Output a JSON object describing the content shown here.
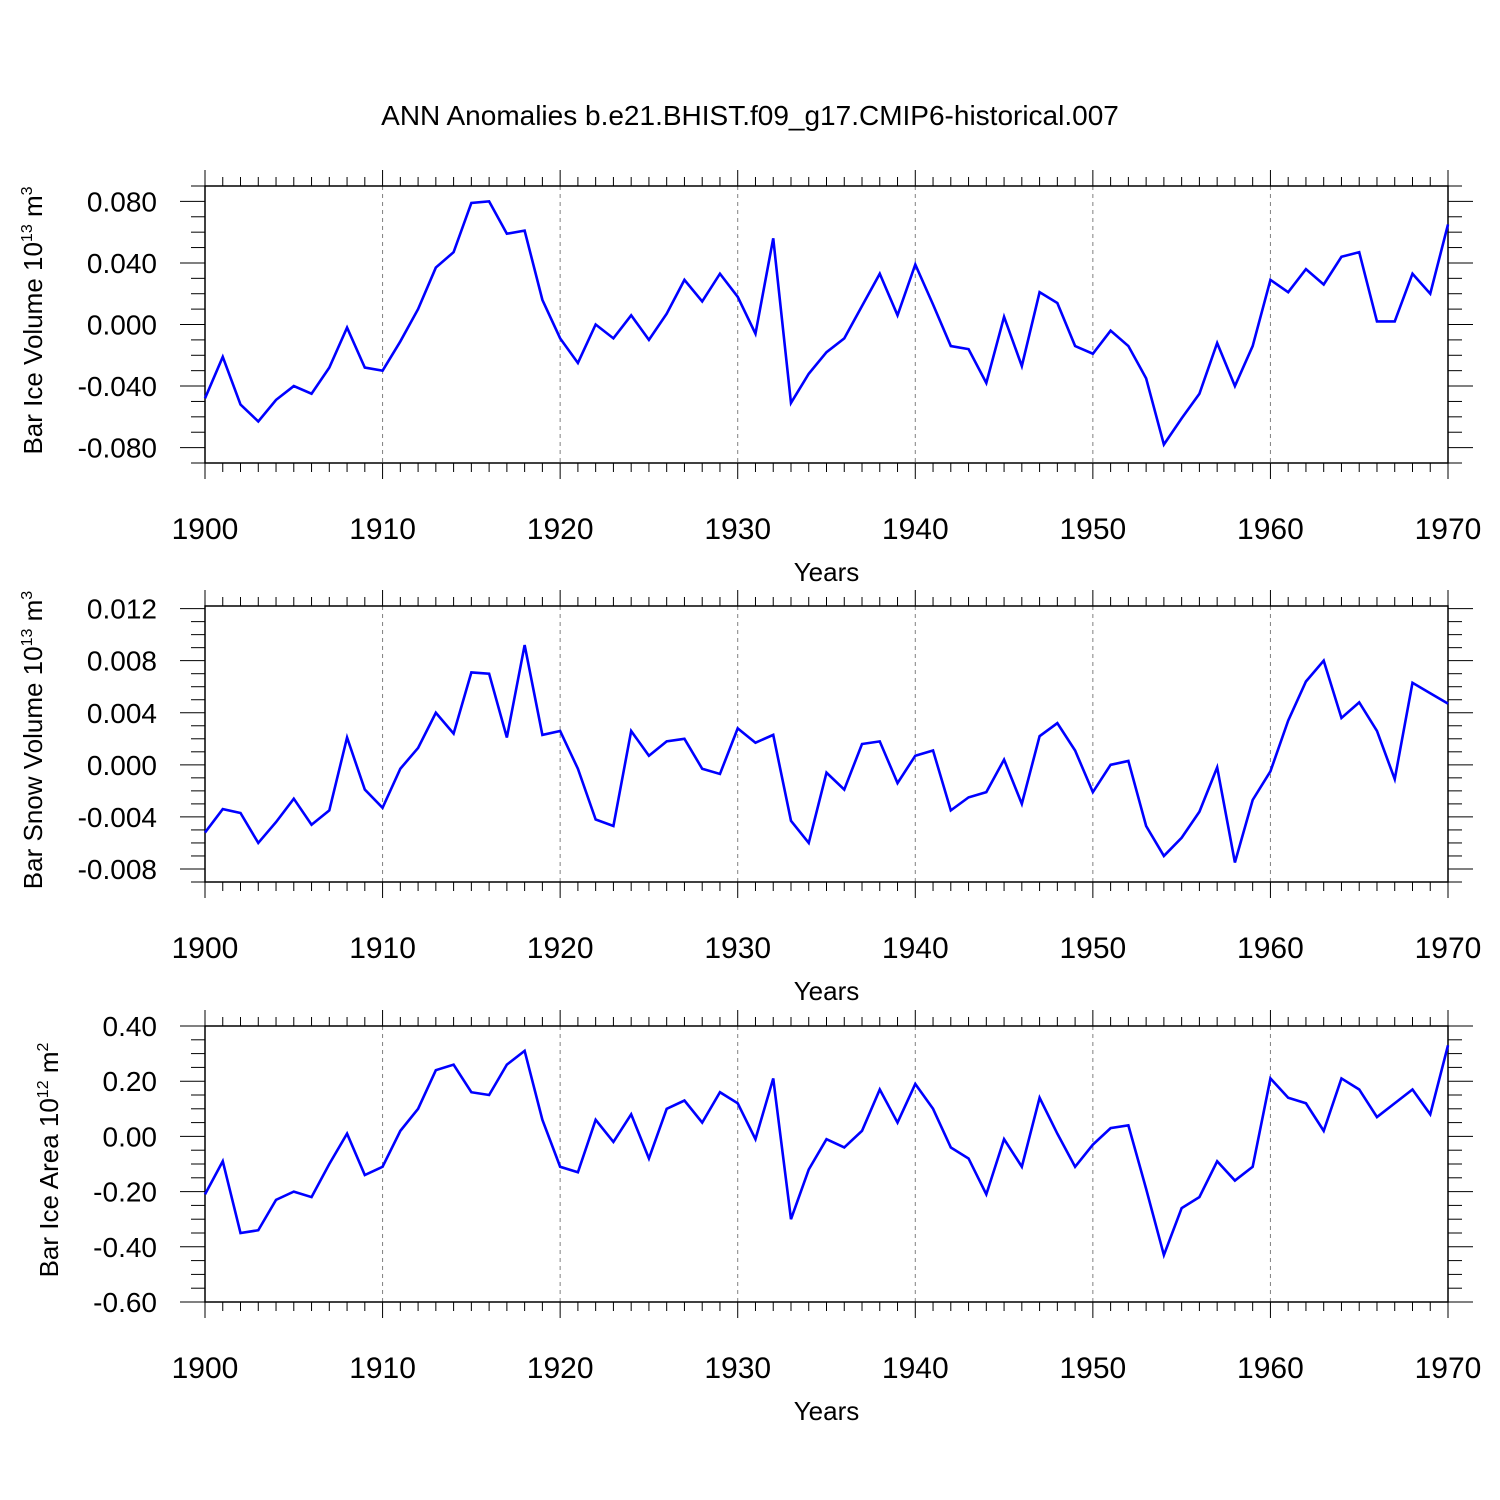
{
  "title": "ANN Anomalies b.e21.BHIST.f09_g17.CMIP6-historical.007",
  "colors": {
    "line": "#0000ff",
    "axis": "#000000",
    "grid": "#808080"
  },
  "chart_data": [
    {
      "type": "line",
      "ylabel_main": "Bar Ice Volume 10",
      "ylabel_exp1": "13",
      "ylabel_unit": " m",
      "ylabel_exp2": "3",
      "xlabel": "Years",
      "xlim": [
        1900,
        1970
      ],
      "ylim": [
        -0.09,
        0.09
      ],
      "xticks": [
        1900,
        1910,
        1920,
        1930,
        1940,
        1950,
        1960,
        1970
      ],
      "yticks": [
        -0.08,
        -0.04,
        0.0,
        0.04,
        0.08
      ],
      "ytick_labels": [
        "-0.080",
        "-0.040",
        "0.000",
        "0.040",
        "0.080"
      ],
      "yminor_step": 0.01,
      "vgrid": [
        1910,
        1920,
        1930,
        1940,
        1950,
        1960
      ],
      "series": [
        {
          "name": "Bar Ice Volume",
          "values": [
            -0.048,
            -0.021,
            -0.052,
            -0.063,
            -0.049,
            -0.04,
            -0.045,
            -0.028,
            -0.002,
            -0.028,
            -0.03,
            -0.011,
            0.01,
            0.037,
            0.047,
            0.079,
            0.08,
            0.059,
            0.061,
            0.016,
            -0.009,
            -0.025,
            0.0,
            -0.009,
            0.006,
            -0.01,
            0.007,
            0.029,
            0.015,
            0.033,
            0.018,
            -0.006,
            0.056,
            -0.051,
            -0.032,
            -0.018,
            -0.009,
            0.012,
            0.033,
            0.006,
            0.039,
            0.013,
            -0.014,
            -0.016,
            -0.038,
            0.005,
            -0.027,
            0.021,
            0.014,
            -0.014,
            -0.019,
            -0.004,
            -0.014,
            -0.035,
            -0.078,
            -0.061,
            -0.045,
            -0.012,
            -0.04,
            -0.014,
            0.029,
            0.021,
            0.036,
            0.026,
            0.044,
            0.047,
            0.002,
            0.002,
            0.033,
            0.02,
            0.065
          ]
        }
      ]
    },
    {
      "type": "line",
      "ylabel_main": "Bar Snow Volume 10",
      "ylabel_exp1": "13",
      "ylabel_unit": " m",
      "ylabel_exp2": "3",
      "xlabel": "Years",
      "xlim": [
        1900,
        1970
      ],
      "ylim": [
        -0.009,
        0.0122
      ],
      "xticks": [
        1900,
        1910,
        1920,
        1930,
        1940,
        1950,
        1960,
        1970
      ],
      "yticks": [
        -0.008,
        -0.004,
        0.0,
        0.004,
        0.008,
        0.012
      ],
      "ytick_labels": [
        "-0.008",
        "-0.004",
        "0.000",
        "0.004",
        "0.008",
        "0.012"
      ],
      "yminor_step": 0.001,
      "vgrid": [
        1910,
        1920,
        1930,
        1940,
        1950,
        1960
      ],
      "series": [
        {
          "name": "Bar Snow Volume",
          "values": [
            -0.0052,
            -0.0034,
            -0.0037,
            -0.006,
            -0.0044,
            -0.0026,
            -0.0046,
            -0.0035,
            0.0021,
            -0.0019,
            -0.0033,
            -0.0003,
            0.0013,
            0.004,
            0.0024,
            0.0071,
            0.007,
            0.0021,
            0.0092,
            0.0023,
            0.0026,
            -0.0003,
            -0.0042,
            -0.0047,
            0.0026,
            0.0007,
            0.0018,
            0.002,
            -0.0003,
            -0.0007,
            0.0028,
            0.0017,
            0.0023,
            -0.0043,
            -0.006,
            -0.0006,
            -0.0019,
            0.0016,
            0.0018,
            -0.0014,
            0.0007,
            0.0011,
            -0.0035,
            -0.0025,
            -0.0021,
            0.0004,
            -0.003,
            0.0022,
            0.0032,
            0.0011,
            -0.0021,
            0.0,
            0.0003,
            -0.0047,
            -0.007,
            -0.0056,
            -0.0036,
            -0.0002,
            -0.0075,
            -0.0027,
            -0.0005,
            0.0034,
            0.0064,
            0.008,
            0.0036,
            0.0048,
            0.0026,
            -0.0011,
            0.0063,
            0.0055,
            0.0047
          ]
        }
      ]
    },
    {
      "type": "line",
      "ylabel_main": "Bar Ice Area 10",
      "ylabel_exp1": "12",
      "ylabel_unit": " m",
      "ylabel_exp2": "2",
      "xlabel": "Years",
      "xlim": [
        1900,
        1970
      ],
      "ylim": [
        -0.6,
        0.4
      ],
      "xticks": [
        1900,
        1910,
        1920,
        1930,
        1940,
        1950,
        1960,
        1970
      ],
      "yticks": [
        -0.6,
        -0.4,
        -0.2,
        0.0,
        0.2,
        0.4
      ],
      "ytick_labels": [
        "-0.60",
        "-0.40",
        "-0.20",
        "0.00",
        "0.20",
        "0.40"
      ],
      "yminor_step": 0.05,
      "vgrid": [
        1910,
        1920,
        1930,
        1940,
        1950,
        1960
      ],
      "series": [
        {
          "name": "Bar Ice Area",
          "values": [
            -0.21,
            -0.09,
            -0.35,
            -0.34,
            -0.23,
            -0.2,
            -0.22,
            -0.1,
            0.01,
            -0.14,
            -0.11,
            0.02,
            0.1,
            0.24,
            0.26,
            0.16,
            0.15,
            0.26,
            0.31,
            0.06,
            -0.11,
            -0.13,
            0.06,
            -0.02,
            0.08,
            -0.08,
            0.1,
            0.13,
            0.05,
            0.16,
            0.12,
            -0.01,
            0.21,
            -0.3,
            -0.12,
            -0.01,
            -0.04,
            0.02,
            0.17,
            0.05,
            0.19,
            0.1,
            -0.04,
            -0.08,
            -0.21,
            -0.01,
            -0.11,
            0.14,
            0.01,
            -0.11,
            -0.03,
            0.03,
            0.04,
            -0.19,
            -0.43,
            -0.26,
            -0.22,
            -0.09,
            -0.16,
            -0.11,
            0.21,
            0.14,
            0.12,
            0.02,
            0.21,
            0.17,
            0.07,
            0.12,
            0.17,
            0.08,
            0.33
          ]
        }
      ]
    }
  ]
}
